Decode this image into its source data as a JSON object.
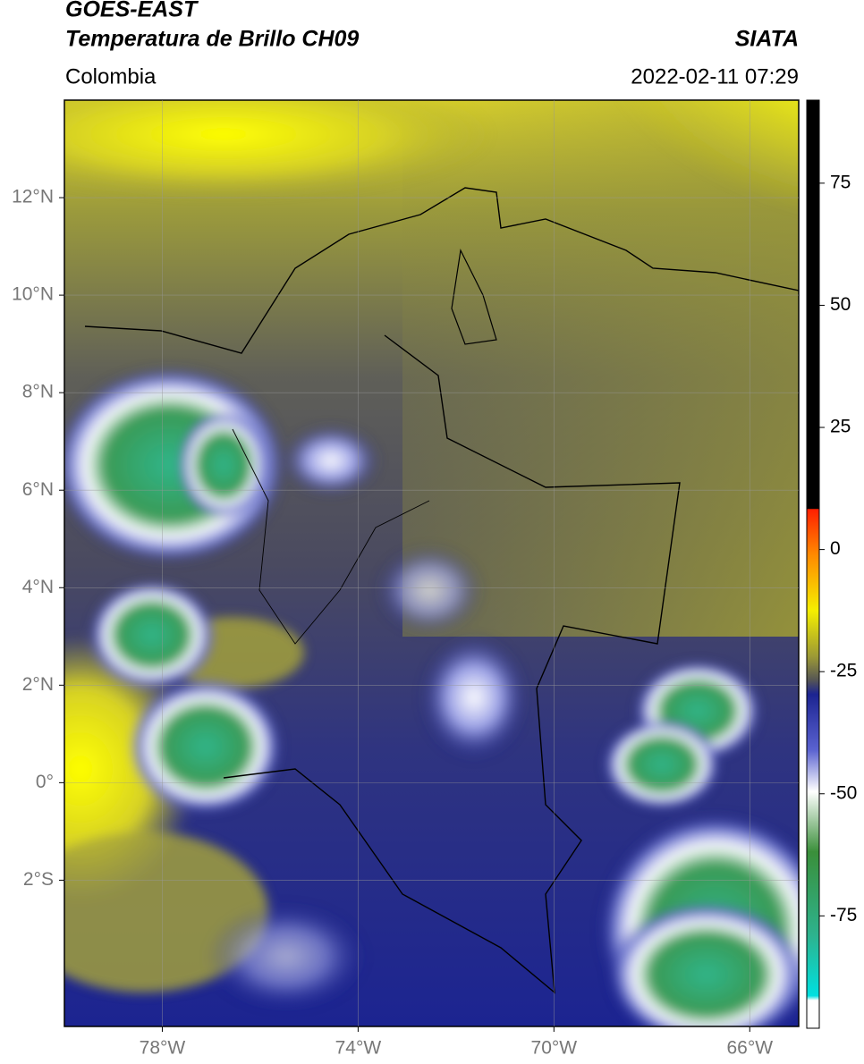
{
  "header": {
    "title_lines": [
      "GOES-EAST",
      "Temperatura de Brillo CH09"
    ],
    "source": "SIATA",
    "region": "Colombia",
    "datetime": "2022-02-11 07:29"
  },
  "map": {
    "xlim": [
      -80,
      -65
    ],
    "ylim": [
      -5,
      14
    ],
    "xticks": [
      {
        "value": -78,
        "label": "78°W"
      },
      {
        "value": -74,
        "label": "74°W"
      },
      {
        "value": -70,
        "label": "70°W"
      },
      {
        "value": -66,
        "label": "66°W"
      }
    ],
    "yticks": [
      {
        "value": 12,
        "label": "12°N"
      },
      {
        "value": 10,
        "label": "10°N"
      },
      {
        "value": 8,
        "label": "8°N"
      },
      {
        "value": 6,
        "label": "6°N"
      },
      {
        "value": 4,
        "label": "4°N"
      },
      {
        "value": 2,
        "label": "2°N"
      },
      {
        "value": 0,
        "label": "0°"
      },
      {
        "value": -2,
        "label": "2°S"
      }
    ],
    "grid": true
  },
  "colorbar": {
    "lim": [
      -98,
      92
    ],
    "ticks": [
      75,
      50,
      25,
      0,
      -25,
      -50,
      -75
    ]
  }
}
